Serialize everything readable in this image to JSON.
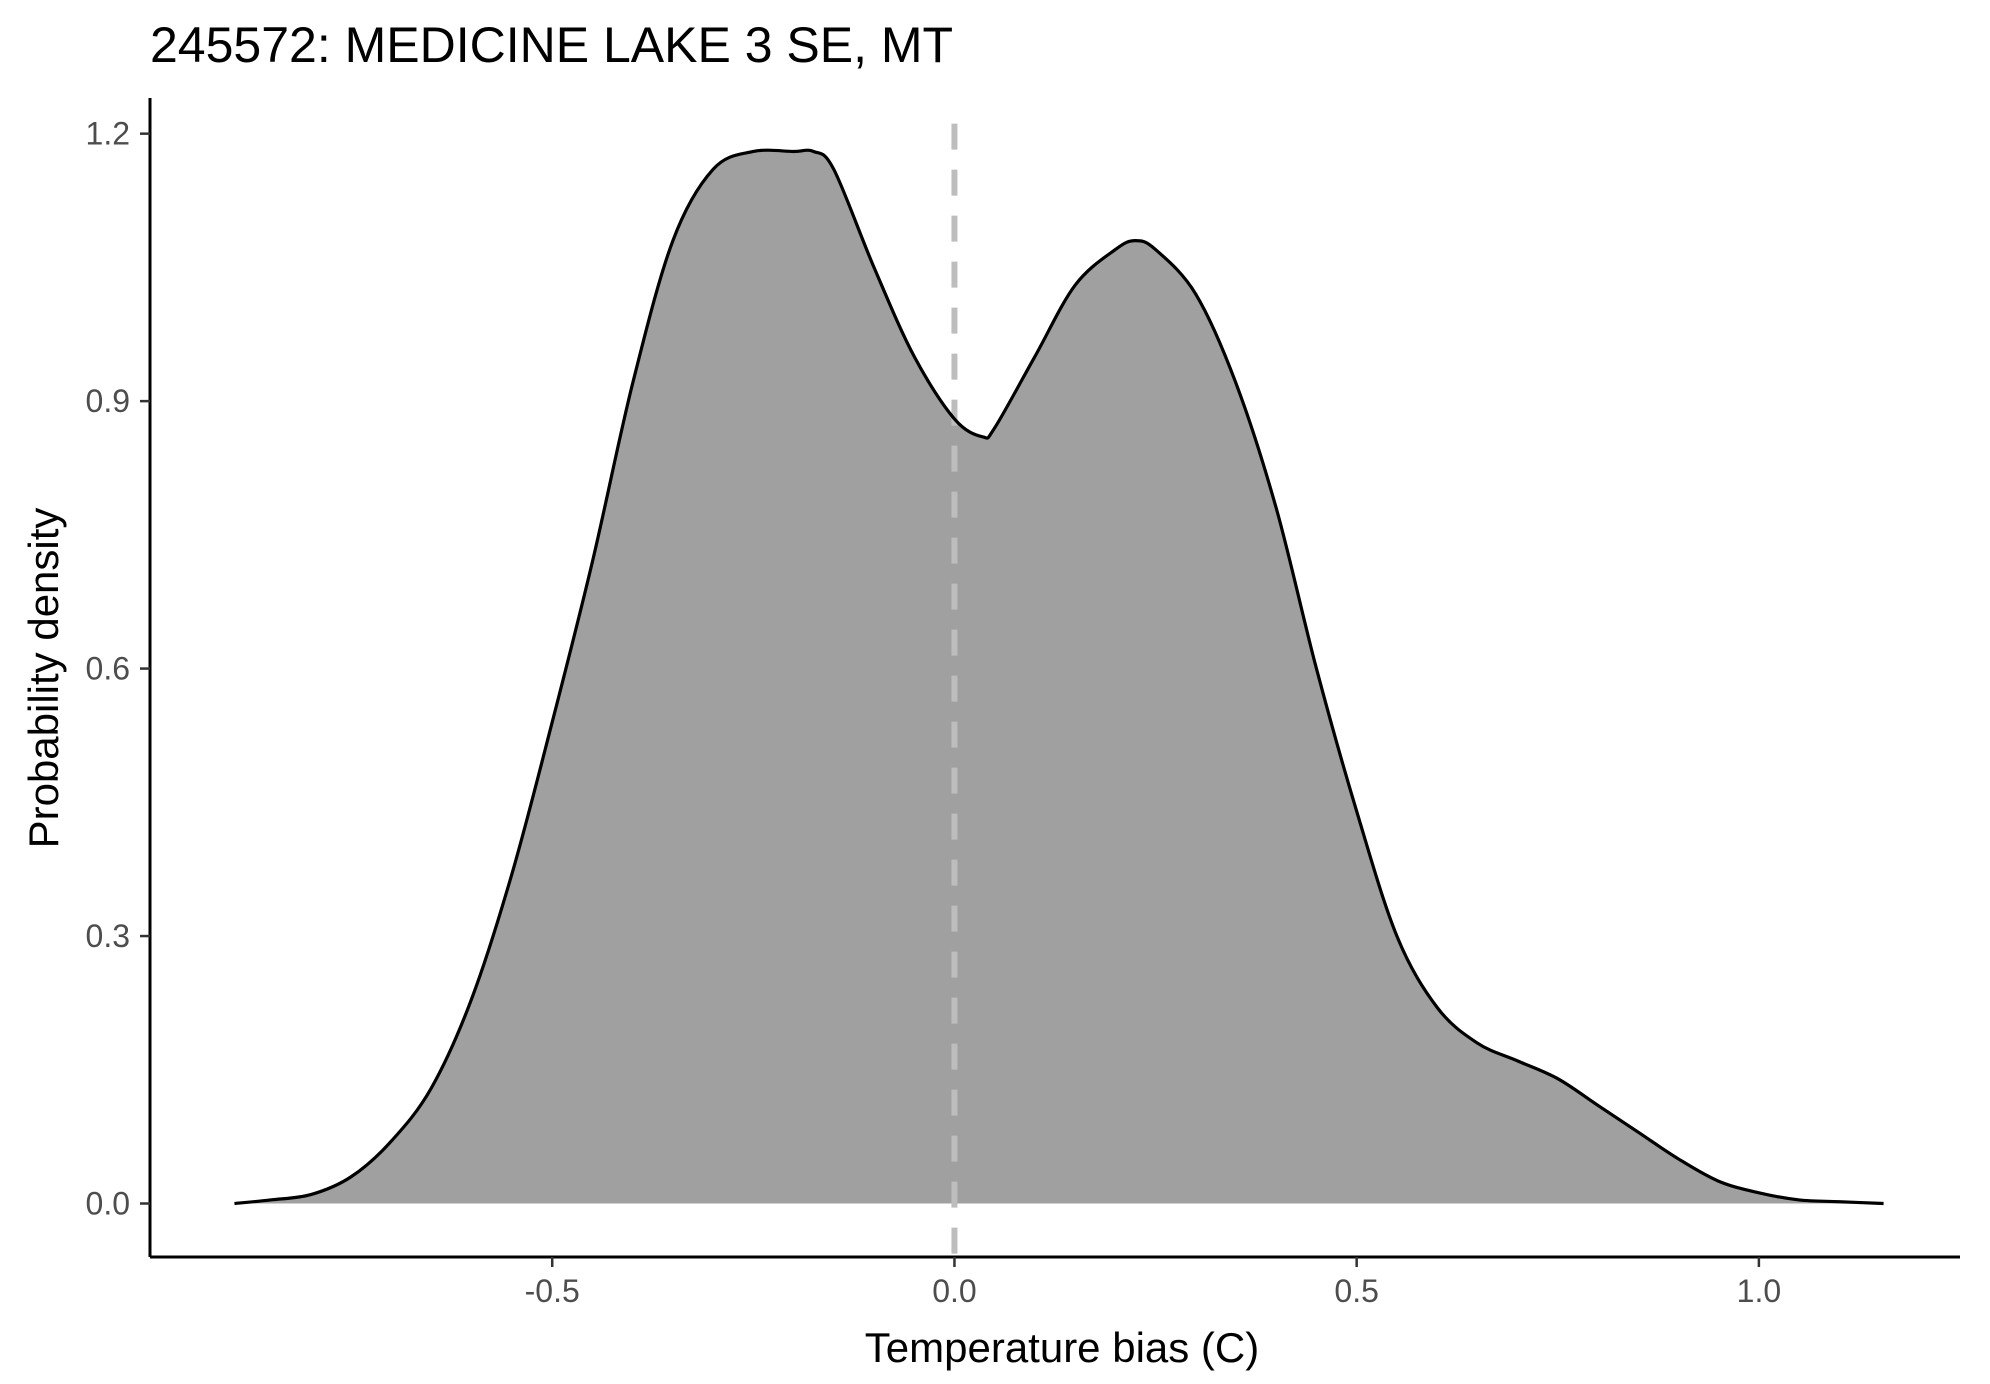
{
  "chart_data": {
    "type": "area",
    "title": "245572: MEDICINE LAKE 3 SE, MT",
    "xlabel": "Temperature bias (C)",
    "ylabel": "Probability density",
    "xlim": [
      -1.0,
      1.25
    ],
    "ylim": [
      -0.06,
      1.24
    ],
    "x_ticks": [
      -0.5,
      0.0,
      0.5,
      1.0
    ],
    "x_tick_labels": [
      "-0.5",
      "0.0",
      "0.5",
      "1.0"
    ],
    "y_ticks": [
      0.0,
      0.3,
      0.6,
      0.9,
      1.2
    ],
    "y_tick_labels": [
      "0.0",
      "0.3",
      "0.6",
      "0.9",
      "1.2"
    ],
    "grid": false,
    "legend": "none",
    "reference_line": {
      "x": 0.0,
      "style": "dashed",
      "color": "#bdbdbd"
    },
    "fill_color": "#a0a0a0",
    "line_color": "#000000",
    "series": [
      {
        "x": [
          -0.895,
          -0.85,
          -0.8,
          -0.75,
          -0.7,
          -0.65,
          -0.6,
          -0.55,
          -0.5,
          -0.45,
          -0.4,
          -0.35,
          -0.3,
          -0.25,
          -0.2,
          -0.175,
          -0.15,
          -0.1,
          -0.05,
          0.0,
          0.035,
          0.05,
          0.1,
          0.15,
          0.2,
          0.225,
          0.25,
          0.3,
          0.35,
          0.4,
          0.45,
          0.5,
          0.55,
          0.6,
          0.65,
          0.7,
          0.75,
          0.8,
          0.85,
          0.9,
          0.95,
          1.0,
          1.05,
          1.1,
          1.155
        ],
        "y": [
          0.0,
          0.004,
          0.01,
          0.03,
          0.07,
          0.13,
          0.23,
          0.37,
          0.54,
          0.72,
          0.92,
          1.08,
          1.16,
          1.18,
          1.18,
          1.18,
          1.16,
          1.05,
          0.95,
          0.88,
          0.86,
          0.87,
          0.95,
          1.03,
          1.07,
          1.08,
          1.07,
          1.02,
          0.92,
          0.78,
          0.6,
          0.44,
          0.3,
          0.22,
          0.18,
          0.16,
          0.14,
          0.11,
          0.08,
          0.05,
          0.025,
          0.012,
          0.004,
          0.002,
          0.0
        ]
      }
    ]
  }
}
